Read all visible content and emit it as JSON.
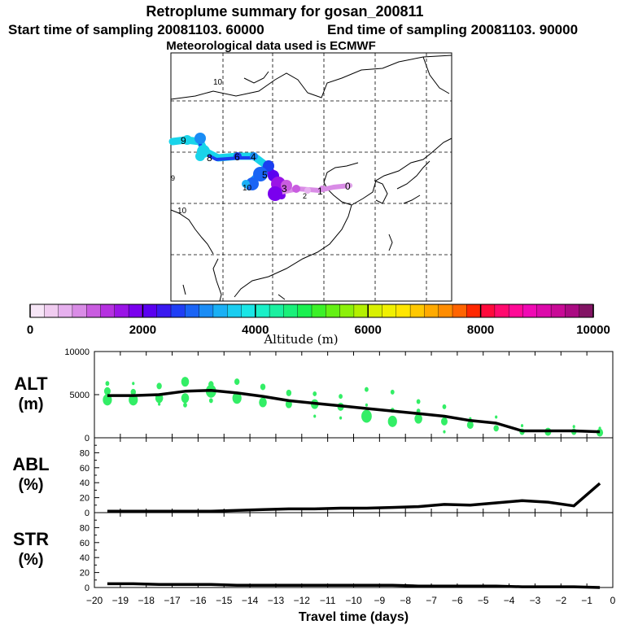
{
  "header": {
    "title": "Retroplume summary for gosan_200811",
    "start_label": "Start time of sampling 20081103. 60000",
    "end_label": "End time of sampling 20081103. 90000",
    "met_label": "Meteorological data used is ECMWF"
  },
  "map": {
    "labels": [
      "10",
      "9",
      "8",
      "6",
      "4",
      "5",
      "3",
      "2",
      "1",
      "0",
      "10",
      "9",
      "10"
    ]
  },
  "colorbar": {
    "ticks": [
      "0",
      "2000",
      "4000",
      "6000",
      "8000",
      "10000"
    ],
    "label": "Altitude  (m)",
    "colors": [
      "#f7e6f7",
      "#f0ccf0",
      "#e6b0ee",
      "#d98ce6",
      "#c95ce0",
      "#b531e0",
      "#9a14e6",
      "#7a00ee",
      "#5a00f0",
      "#3a1af0",
      "#1f3ef5",
      "#1a64f5",
      "#1a8cf5",
      "#1ab0f5",
      "#1acdf0",
      "#1ae6e6",
      "#1af0c8",
      "#1af0a0",
      "#1af07a",
      "#1af050",
      "#3cf028",
      "#64f014",
      "#8cf00a",
      "#b4f000",
      "#d8f000",
      "#f0f000",
      "#ffe600",
      "#ffc800",
      "#ffaa00",
      "#ff8c00",
      "#ff6400",
      "#ff2800",
      "#ff0a3c",
      "#ff0a6e",
      "#ff0a96",
      "#f00ab4",
      "#dc0aaa",
      "#c80a96",
      "#aa0a82",
      "#821464"
    ]
  },
  "chart_data": [
    {
      "type": "line",
      "panel": "ALT",
      "ylabel": "ALT\n(m)",
      "ylim": [
        0,
        10000
      ],
      "yticks": [
        "0",
        "5000",
        "10000"
      ],
      "xlim": [
        -20,
        0
      ],
      "x": [
        -19.5,
        -18.5,
        -17.5,
        -16.5,
        -15.5,
        -14.5,
        -13.5,
        -12.5,
        -11.5,
        -10.5,
        -9.5,
        -8.5,
        -7.5,
        -6.5,
        -5.5,
        -4.5,
        -3.5,
        -2.5,
        -1.5,
        -0.5
      ],
      "series": [
        {
          "name": "mean altitude",
          "color": "#000000",
          "values": [
            4900,
            4900,
            5000,
            5400,
            5500,
            5200,
            4800,
            4300,
            4000,
            3700,
            3400,
            3100,
            2800,
            2500,
            2000,
            1700,
            800,
            800,
            800,
            700
          ]
        }
      ],
      "scatter": {
        "color": "#33ee66",
        "points": [
          [
            -19.5,
            4400,
            7
          ],
          [
            -19.5,
            5400,
            5
          ],
          [
            -19.5,
            6300,
            3
          ],
          [
            -18.5,
            4400,
            7
          ],
          [
            -18.5,
            5300,
            4
          ],
          [
            -18.5,
            6300,
            2
          ],
          [
            -17.5,
            4600,
            6
          ],
          [
            -17.5,
            6000,
            4
          ],
          [
            -17.5,
            3900,
            2
          ],
          [
            -16.5,
            4600,
            6
          ],
          [
            -16.5,
            6500,
            6
          ],
          [
            -16.5,
            3800,
            3
          ],
          [
            -15.5,
            5400,
            8
          ],
          [
            -15.5,
            6200,
            4
          ],
          [
            -15.5,
            4300,
            3
          ],
          [
            -14.5,
            4600,
            7
          ],
          [
            -14.5,
            6500,
            4
          ],
          [
            -13.5,
            4100,
            6
          ],
          [
            -13.5,
            5900,
            4
          ],
          [
            -12.5,
            3900,
            5
          ],
          [
            -12.5,
            5200,
            4
          ],
          [
            -11.5,
            3900,
            6
          ],
          [
            -11.5,
            5100,
            3
          ],
          [
            -11.5,
            2500,
            2
          ],
          [
            -10.5,
            3600,
            5
          ],
          [
            -10.5,
            4800,
            3
          ],
          [
            -10.5,
            2300,
            2
          ],
          [
            -9.5,
            2500,
            8
          ],
          [
            -9.5,
            5600,
            3
          ],
          [
            -9.5,
            3800,
            2
          ],
          [
            -8.5,
            1900,
            7
          ],
          [
            -8.5,
            5300,
            3
          ],
          [
            -8.5,
            3200,
            3
          ],
          [
            -7.5,
            2200,
            6
          ],
          [
            -7.5,
            4200,
            3
          ],
          [
            -7.5,
            3100,
            3
          ],
          [
            -6.5,
            1900,
            5
          ],
          [
            -6.5,
            3600,
            3
          ],
          [
            -6.5,
            700,
            2
          ],
          [
            -5.5,
            1500,
            5
          ],
          [
            -5.5,
            2200,
            2
          ],
          [
            -4.5,
            1100,
            4
          ],
          [
            -4.5,
            2400,
            2
          ],
          [
            -3.5,
            700,
            4
          ],
          [
            -3.5,
            1400,
            2
          ],
          [
            -2.5,
            700,
            5
          ],
          [
            -1.5,
            700,
            4
          ],
          [
            -1.5,
            1300,
            2
          ],
          [
            -0.5,
            600,
            5
          ],
          [
            -0.5,
            1100,
            2
          ]
        ]
      }
    },
    {
      "type": "line",
      "panel": "ABL",
      "ylabel": "ABL\n(%)",
      "ylim": [
        0,
        100
      ],
      "yticks": [
        "0",
        "20",
        "40",
        "60",
        "80"
      ],
      "xlim": [
        -20,
        0
      ],
      "x": [
        -19.5,
        -18.5,
        -17.5,
        -16.5,
        -15.5,
        -14.5,
        -13.5,
        -12.5,
        -11.5,
        -10.5,
        -9.5,
        -8.5,
        -7.5,
        -6.5,
        -5.5,
        -4.5,
        -3.5,
        -2.5,
        -1.5,
        -0.5
      ],
      "series": [
        {
          "name": "ABL fraction",
          "color": "#000000",
          "values": [
            2,
            2,
            2,
            2,
            2,
            3,
            4,
            5,
            5,
            6,
            6,
            7,
            8,
            11,
            10,
            13,
            16,
            14,
            9,
            39
          ]
        }
      ]
    },
    {
      "type": "line",
      "panel": "STR",
      "ylabel": "STR\n(%)",
      "ylim": [
        0,
        100
      ],
      "yticks": [
        "0",
        "20",
        "40",
        "60",
        "80"
      ],
      "xlim": [
        -20,
        0
      ],
      "xlabel": "Travel time (days)",
      "xticks": [
        "-20",
        "-19",
        "-18",
        "-17",
        "-16",
        "-15",
        "-14",
        "-13",
        "-12",
        "-11",
        "-10",
        "-9",
        "-8",
        "-7",
        "-6",
        "-5",
        "-4",
        "-3",
        "-2",
        "-1",
        "0"
      ],
      "x": [
        -19.5,
        -18.5,
        -17.5,
        -16.5,
        -15.5,
        -14.5,
        -13.5,
        -12.5,
        -11.5,
        -10.5,
        -9.5,
        -8.5,
        -7.5,
        -6.5,
        -5.5,
        -4.5,
        -3.5,
        -2.5,
        -1.5,
        -0.5
      ],
      "series": [
        {
          "name": "stratospheric fraction",
          "color": "#000000",
          "values": [
            5,
            5,
            4,
            4,
            4,
            3,
            3,
            3,
            3,
            3,
            3,
            3,
            2,
            2,
            2,
            2,
            1,
            1,
            1,
            0
          ]
        }
      ]
    }
  ]
}
